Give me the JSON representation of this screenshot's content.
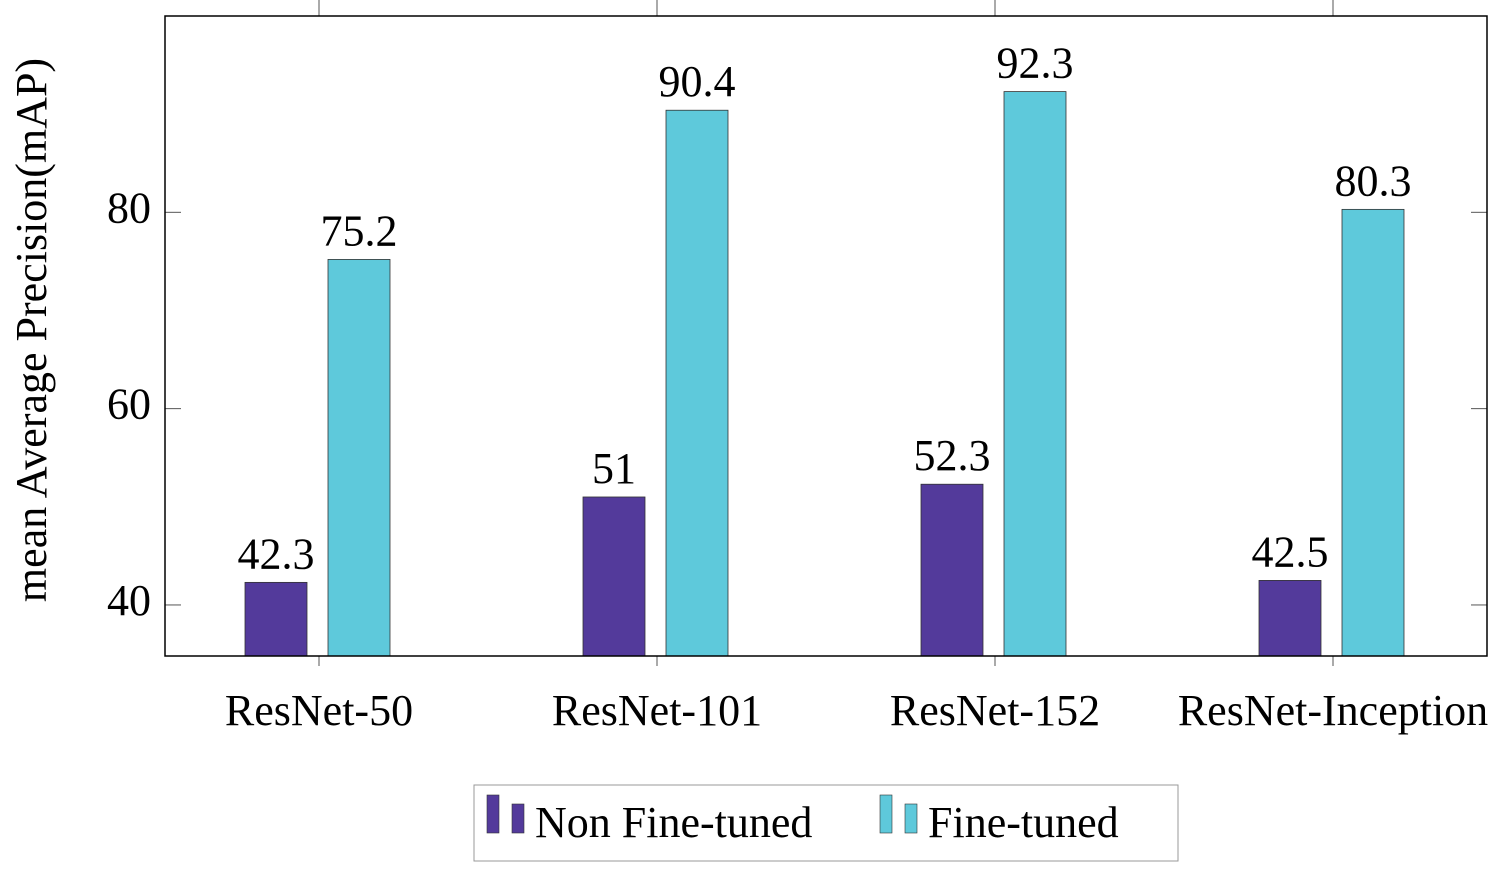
{
  "chart_data": {
    "type": "bar",
    "y_label": "mean Average Precision(mAP)",
    "categories": [
      "ResNet-50",
      "ResNet-101",
      "ResNet-152",
      "ResNet-Inception"
    ],
    "series": [
      {
        "name": "Non Fine-tuned",
        "color": "#533a9b",
        "values": [
          42.3,
          51,
          52.3,
          42.5
        ]
      },
      {
        "name": "Fine-tuned",
        "color": "#5ec9db",
        "values": [
          75.2,
          90.4,
          92.3,
          80.3
        ]
      }
    ],
    "ylim": [
      34.8,
      100
    ],
    "yticks": [
      40,
      60,
      80
    ],
    "legend": "bottom"
  }
}
